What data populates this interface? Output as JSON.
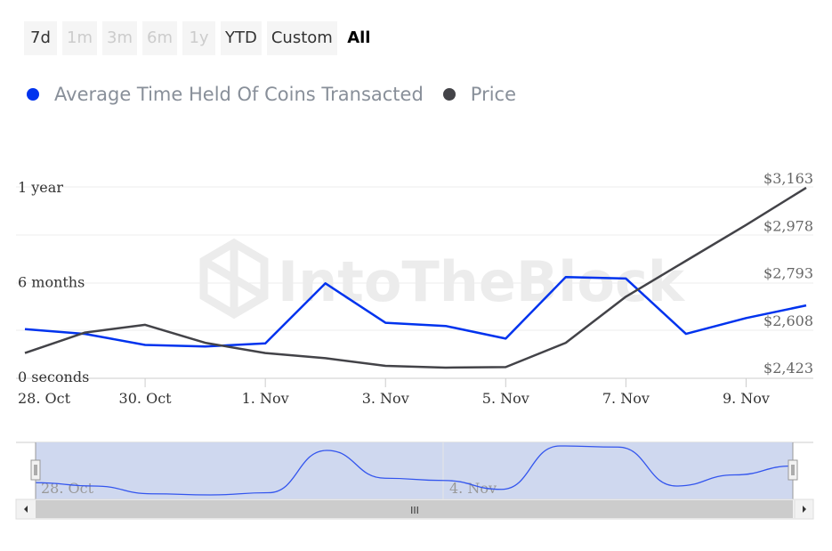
{
  "range_selector": {
    "buttons": [
      {
        "label": "7d",
        "state": "enabled"
      },
      {
        "label": "1m",
        "state": "disabled"
      },
      {
        "label": "3m",
        "state": "disabled"
      },
      {
        "label": "6m",
        "state": "disabled"
      },
      {
        "label": "1y",
        "state": "disabled"
      },
      {
        "label": "YTD",
        "state": "enabled"
      },
      {
        "label": "Custom",
        "state": "enabled"
      },
      {
        "label": "All",
        "state": "active"
      }
    ]
  },
  "watermark": "IntoTheBlock",
  "navigator": {
    "ticks": [
      "28. Oct",
      "4. Nov"
    ],
    "grip": "III"
  },
  "chart_data": {
    "type": "line",
    "x": [
      "2024-10-28",
      "2024-10-29",
      "2024-10-30",
      "2024-10-31",
      "2024-11-01",
      "2024-11-02",
      "2024-11-03",
      "2024-11-04",
      "2024-11-05",
      "2024-11-06",
      "2024-11-07",
      "2024-11-08",
      "2024-11-09",
      "2024-11-10"
    ],
    "x_tick_labels": [
      "28. Oct",
      "30. Oct",
      "1. Nov",
      "3. Nov",
      "5. Nov",
      "7. Nov",
      "9. Nov"
    ],
    "legend_position": "top-left",
    "series": [
      {
        "name": "Average Time Held Of Coins Transacted",
        "color": "#0033ee",
        "axis": "left",
        "unit": "months",
        "values": [
          3.0,
          2.7,
          2.0,
          1.9,
          2.1,
          5.9,
          3.4,
          3.2,
          2.4,
          6.3,
          6.2,
          2.7,
          3.7,
          4.5
        ]
      },
      {
        "name": "Price",
        "color": "#434348",
        "axis": "right",
        "unit": "USD",
        "values": [
          2480,
          2560,
          2590,
          2520,
          2480,
          2460,
          2430,
          2423,
          2425,
          2520,
          2700,
          2840,
          2980,
          3125
        ]
      }
    ],
    "y_left": {
      "tick_labels": [
        "0 seconds",
        "6 months",
        "1 year"
      ],
      "tick_values": [
        0,
        6,
        12
      ],
      "range": [
        0,
        12
      ]
    },
    "y_right": {
      "tick_labels": [
        "$2,423",
        "$2,608",
        "$2,793",
        "$2,978",
        "$3,163"
      ],
      "tick_values": [
        2423,
        2608,
        2793,
        2978,
        3163
      ],
      "range": [
        2423,
        3163
      ]
    },
    "grid": true
  }
}
